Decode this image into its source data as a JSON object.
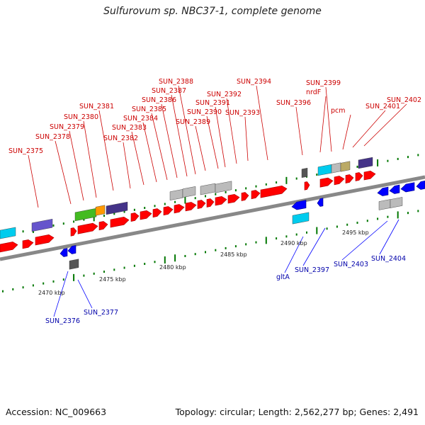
{
  "title": "Sulfurovum sp. NBC37-1, complete genome",
  "footer": {
    "accession": "Accession: NC_009663",
    "topology": "Topology: circular; Length: 2,562,277 bp; Genes: 2,491"
  },
  "colors": {
    "forward_gene": "#ff0000",
    "reverse_gene": "#0000ff",
    "forward_label": "#cc0000",
    "reverse_label": "#0000aa",
    "backbone": "#888888",
    "tick": "#007700",
    "cog_cyan": "#00ccee",
    "cog_purple": "#6655cc",
    "cog_navy": "#443388",
    "cog_green": "#44bb22",
    "cog_orange": "#ff9900",
    "cog_gray": "#bbbbbb",
    "cog_khaki": "#bbaa66",
    "cog_dark": "#555555"
  },
  "scale_labels": [
    "2470 kbp",
    "2475 kbp",
    "2480 kbp",
    "2485 kbp",
    "2490 kbp",
    "2495 kbp"
  ],
  "forward_labels": [
    "SUN_2375",
    "SUN_2378",
    "SUN_2379",
    "SUN_2380",
    "SUN_2381",
    "SUN_2382",
    "SUN_2383",
    "SUN_2384",
    "SUN_2385",
    "SUN_2386",
    "SUN_2387",
    "SUN_2388",
    "SUN_2389",
    "SUN_2390",
    "SUN_2391",
    "SUN_2392",
    "SUN_2393",
    "SUN_2394",
    "SUN_2396",
    "nrdF",
    "SUN_2399",
    "pcm",
    "SUN_2401",
    "SUN_2402"
  ],
  "reverse_labels": [
    "SUN_2376",
    "SUN_2377",
    "gltA",
    "SUN_2397",
    "SUN_2403",
    "SUN_2404"
  ]
}
